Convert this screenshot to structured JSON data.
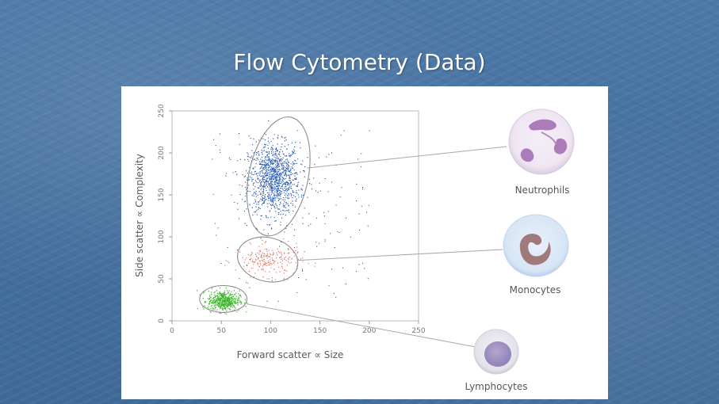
{
  "slide": {
    "title": "Flow Cytometry (Data)"
  },
  "chart_data": {
    "type": "scatter",
    "title": "",
    "xlabel": "Forward scatter ∝ Size",
    "ylabel": "Side scatter ∝ Complexity",
    "xlim": [
      0,
      250
    ],
    "ylim": [
      0,
      250
    ],
    "x_ticks": [
      "0",
      "50",
      "100",
      "150",
      "200",
      "250"
    ],
    "y_ticks": [
      "0",
      "50",
      "100",
      "150",
      "200",
      "250"
    ],
    "grid": false,
    "series": [
      {
        "name": "Neutrophils",
        "color": "#2f5fb8",
        "center": [
          103,
          170
        ],
        "spread": [
          13,
          21
        ],
        "count": 1100,
        "gate_center": [
          108,
          172
        ],
        "gate_radii": [
          30,
          72
        ],
        "gate_angle": 12
      },
      {
        "name": "Monocytes",
        "color": "#e07c6a",
        "center": [
          98,
          72
        ],
        "spread": [
          17,
          9
        ],
        "count": 220,
        "gate_center": [
          97,
          73
        ],
        "gate_radii": [
          31,
          26
        ],
        "gate_angle": 14
      },
      {
        "name": "Lymphocytes",
        "color": "#3cb42a",
        "center": [
          52,
          24
        ],
        "spread": [
          8,
          6
        ],
        "count": 500,
        "gate_center": [
          52,
          26
        ],
        "gate_radii": [
          24,
          16
        ],
        "gate_angle": 0
      }
    ],
    "scattered_background_points": 160,
    "cell_labels": [
      "Neutrophils",
      "Monocytes",
      "Lymphocytes"
    ]
  }
}
